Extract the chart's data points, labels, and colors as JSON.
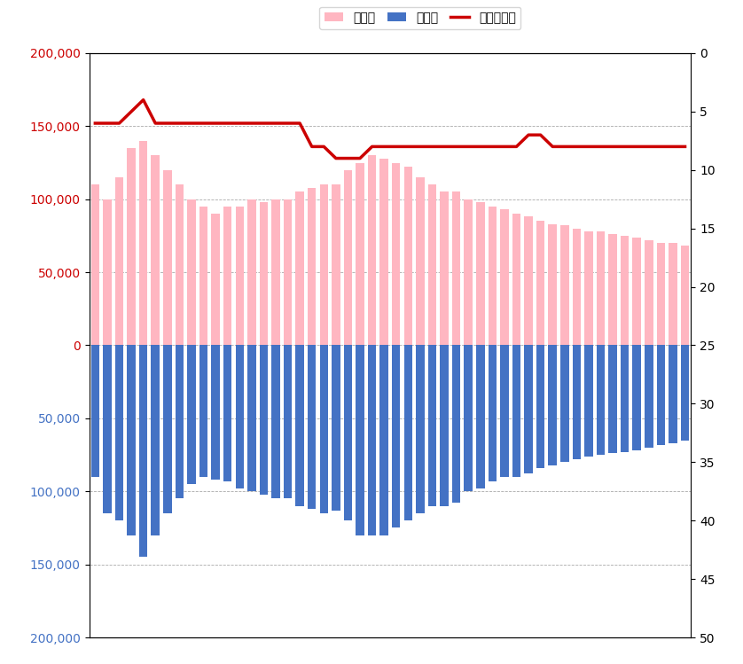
{
  "legend_labels": [
    "女の子",
    "男の子",
    "ランキング"
  ],
  "bar_color_girls": "#FFB6C1",
  "bar_color_boys": "#4472C4",
  "line_color": "#CC0000",
  "left_ylim": [
    -200000,
    200000
  ],
  "right_ylim": [
    50,
    0
  ],
  "left_yticks": [
    -200000,
    -150000,
    -100000,
    -50000,
    0,
    50000,
    100000,
    150000,
    200000
  ],
  "right_yticks": [
    0,
    5,
    10,
    15,
    20,
    25,
    30,
    35,
    40,
    45,
    50
  ],
  "girls": [
    110000,
    100000,
    115000,
    135000,
    140000,
    130000,
    120000,
    110000,
    100000,
    95000,
    90000,
    95000,
    95000,
    100000,
    98000,
    100000,
    100000,
    105000,
    108000,
    110000,
    110000,
    120000,
    125000,
    130000,
    128000,
    125000,
    122000,
    115000,
    110000,
    105000,
    105000,
    100000,
    98000,
    95000,
    93000,
    90000,
    88000,
    85000,
    83000,
    82000,
    80000,
    78000,
    78000,
    76000,
    75000,
    74000,
    72000,
    70000,
    70000,
    68000
  ],
  "boys": [
    -90000,
    -115000,
    -120000,
    -130000,
    -145000,
    -130000,
    -115000,
    -105000,
    -95000,
    -90000,
    -92000,
    -93000,
    -98000,
    -100000,
    -102000,
    -105000,
    -105000,
    -110000,
    -112000,
    -115000,
    -113000,
    -120000,
    -130000,
    -130000,
    -130000,
    -125000,
    -120000,
    -115000,
    -110000,
    -110000,
    -108000,
    -100000,
    -98000,
    -93000,
    -90000,
    -90000,
    -88000,
    -84000,
    -82000,
    -80000,
    -78000,
    -76000,
    -75000,
    -74000,
    -73000,
    -72000,
    -70000,
    -68000,
    -67000,
    -65000
  ],
  "ranking": [
    6,
    6,
    6,
    5,
    4,
    6,
    6,
    6,
    6,
    6,
    6,
    6,
    6,
    6,
    6,
    6,
    6,
    6,
    8,
    8,
    9,
    9,
    9,
    8,
    8,
    8,
    8,
    8,
    8,
    8,
    8,
    8,
    8,
    8,
    8,
    8,
    7,
    7,
    8,
    8,
    8,
    8,
    8,
    8,
    8,
    8,
    8,
    8,
    8,
    8
  ],
  "bar_width": 0.7,
  "figsize": [
    8.38,
    7.49
  ],
  "dpi": 100
}
